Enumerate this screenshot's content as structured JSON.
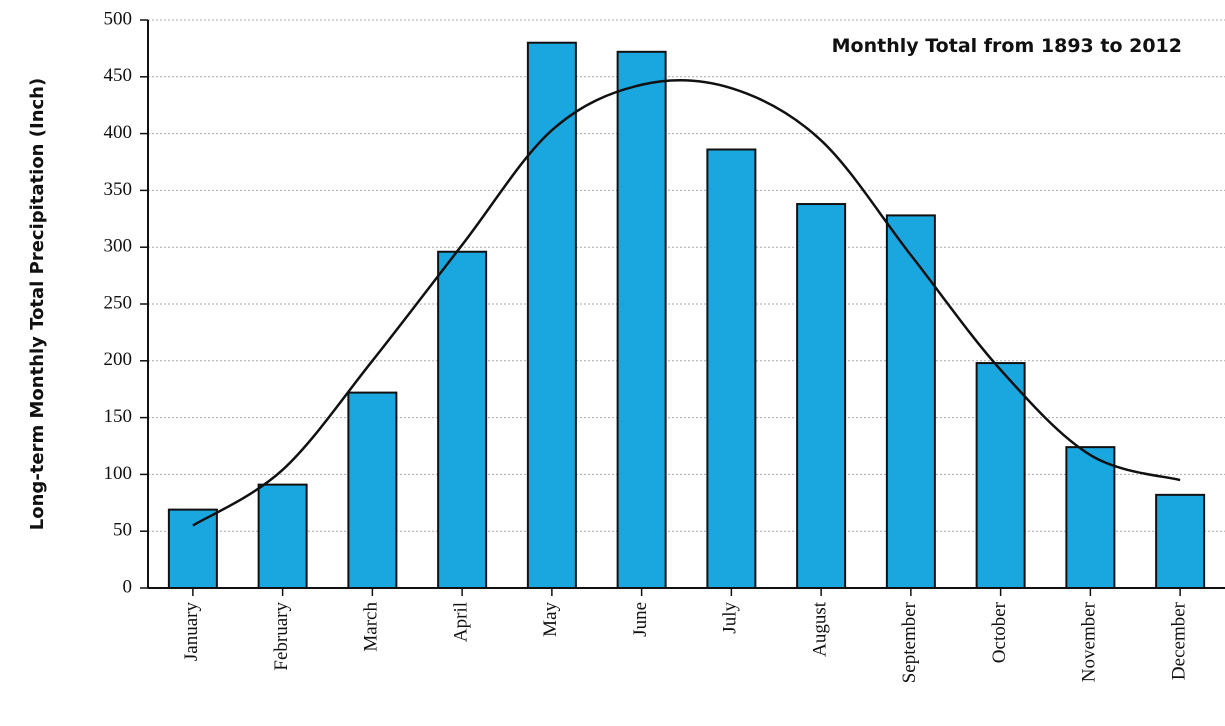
{
  "chart_data": {
    "type": "bar",
    "title": "Monthly Total from 1893 to 2012",
    "y_label": "Long-term Monthly Total  Precipitation (Inch)",
    "categories": [
      "January",
      "February",
      "March",
      "April",
      "May",
      "June",
      "July",
      "August",
      "September",
      "October",
      "November",
      "December"
    ],
    "values": [
      69,
      91,
      172,
      296,
      480,
      472,
      386,
      338,
      328,
      198,
      124,
      82
    ],
    "color": "#1aa7e0",
    "curve_values": [
      55,
      104,
      200,
      302,
      403,
      443,
      440,
      394,
      293,
      192,
      117,
      95
    ],
    "curve_color": "#111111",
    "ylim": [
      0,
      500
    ],
    "yticks": [
      0,
      50,
      100,
      150,
      200,
      250,
      300,
      350,
      400,
      450,
      500
    ],
    "grid": true
  }
}
